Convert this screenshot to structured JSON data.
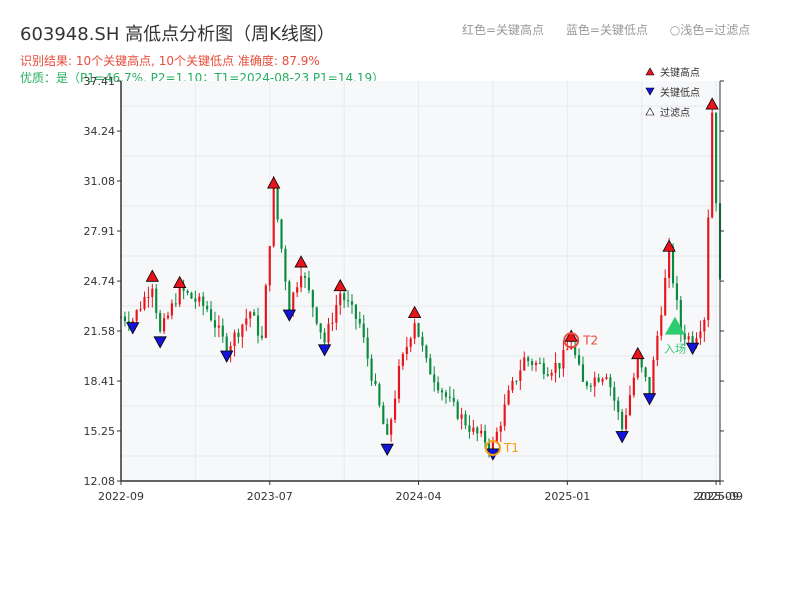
{
  "title": "603948.SH 高低点分析图（周K线图）",
  "subtitle_result": "识别结果: 10个关键高点, 10个关键低点   准确度: 87.9%",
  "subtitle_quality": "优质：是（P1=46.7%, P2=1.10；T1=2024-08-23 P1=14.19）",
  "top_legend": {
    "red": "红色=关键高点",
    "blue": "蓝色=关键低点",
    "light": "○浅色=过滤点"
  },
  "colors": {
    "up": "#e8141c",
    "down": "#0a8a3c",
    "high_marker": "#e8141c",
    "low_marker": "#1414d8",
    "t_circle": "#f39c12",
    "entry": "#2ecc71",
    "grid": "#e6e9ee",
    "plot_bg": "#f7f8fa"
  },
  "chart_data": {
    "type": "candlestick",
    "x_axis_dates": [
      "2022-09",
      "2023-07",
      "2024-04",
      "2025-01",
      "2025-09",
      "2025-09"
    ],
    "y_ticks": [
      "12.08",
      "15.25",
      "18.41",
      "21.58",
      "24.74",
      "27.91",
      "31.08",
      "34.24",
      "37.41"
    ],
    "ylim": [
      12.08,
      37.41
    ],
    "xlim": [
      0,
      153
    ],
    "series": [
      {
        "name": "关键高点",
        "points": [
          [
            8,
            24.6
          ],
          [
            15,
            24.2
          ],
          [
            39,
            30.5
          ],
          [
            46,
            25.5
          ],
          [
            56,
            24.0
          ],
          [
            75,
            22.3
          ],
          [
            115,
            20.8
          ],
          [
            132,
            19.7
          ],
          [
            140,
            26.5
          ],
          [
            151,
            35.5
          ]
        ]
      },
      {
        "name": "关键低点",
        "points": [
          [
            3,
            22.3
          ],
          [
            10,
            21.4
          ],
          [
            27,
            20.5
          ],
          [
            43,
            23.1
          ],
          [
            52,
            20.9
          ],
          [
            68,
            14.6
          ],
          [
            95,
            14.3
          ],
          [
            128,
            15.4
          ],
          [
            135,
            17.8
          ],
          [
            146,
            21.0
          ]
        ]
      },
      {
        "name": "过滤点",
        "points": []
      }
    ],
    "legend": [
      "关键高点",
      "关键低点",
      "过滤点"
    ],
    "legend_position": "top-right",
    "annotations": [
      {
        "label": "T1",
        "x": 95,
        "y": 14.3
      },
      {
        "label": "T2",
        "x": 115,
        "y": 20.8
      },
      {
        "label": "入场",
        "x": 141.5,
        "y": 21.6
      }
    ],
    "grid": true
  }
}
